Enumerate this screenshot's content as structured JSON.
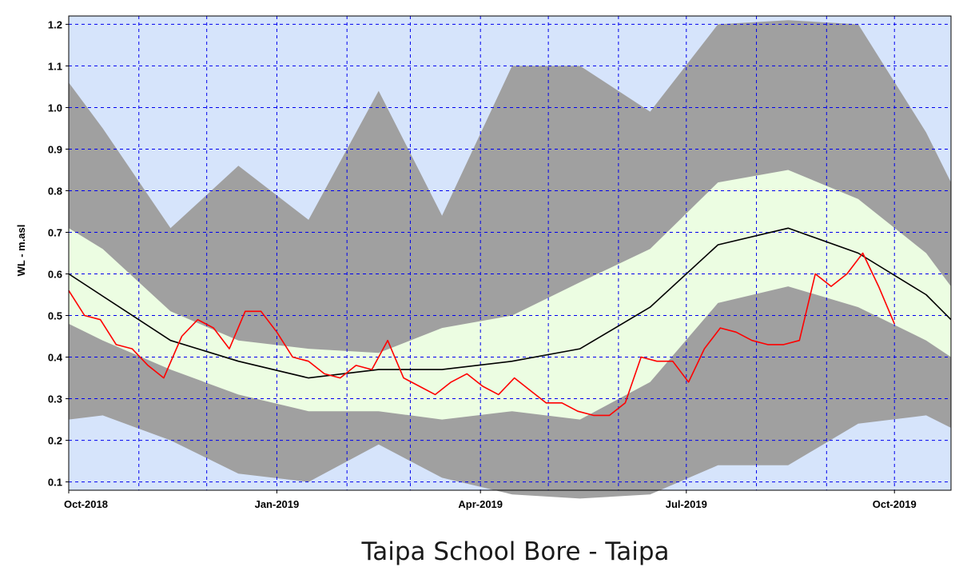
{
  "caption": "Taipa School Bore - Taipa",
  "chart_data": {
    "type": "area",
    "title": "",
    "ylabel": "WL - m.asl",
    "xlabel": "",
    "ylim": [
      0.08,
      1.22
    ],
    "xlim": [
      "2018-10-01",
      "2019-10-26"
    ],
    "grid": true,
    "y_ticks": [
      "0.1",
      "0.2",
      "0.3",
      "0.4",
      "0.5",
      "0.6",
      "0.7",
      "0.8",
      "0.9",
      "1.0",
      "1.1",
      "1.2"
    ],
    "x_ticks": [
      {
        "label": "Oct-2018",
        "date": "2018-10-01"
      },
      {
        "label": "Jan-2019",
        "date": "2019-01-01"
      },
      {
        "label": "Apr-2019",
        "date": "2019-04-01"
      },
      {
        "label": "Jul-2019",
        "date": "2019-07-01"
      },
      {
        "label": "Oct-2019",
        "date": "2019-10-01"
      }
    ],
    "bands": {
      "dates": [
        "2018-10-01",
        "2018-10-16",
        "2018-11-15",
        "2018-12-15",
        "2019-01-15",
        "2019-02-15",
        "2019-03-15",
        "2019-04-15",
        "2019-05-15",
        "2019-06-15",
        "2019-07-15",
        "2019-08-15",
        "2019-09-15",
        "2019-10-15",
        "2019-10-26"
      ],
      "max": [
        1.06,
        0.95,
        0.71,
        0.86,
        0.73,
        1.04,
        0.74,
        1.1,
        1.1,
        0.99,
        1.2,
        1.21,
        1.2,
        0.94,
        0.82
      ],
      "p_high": [
        0.71,
        0.66,
        0.51,
        0.44,
        0.42,
        0.41,
        0.47,
        0.5,
        0.58,
        0.66,
        0.82,
        0.85,
        0.78,
        0.65,
        0.57
      ],
      "p_low": [
        0.48,
        0.44,
        0.37,
        0.31,
        0.27,
        0.27,
        0.25,
        0.27,
        0.25,
        0.34,
        0.53,
        0.57,
        0.52,
        0.44,
        0.4
      ],
      "min": [
        0.25,
        0.26,
        0.2,
        0.12,
        0.1,
        0.19,
        0.11,
        0.07,
        0.06,
        0.07,
        0.14,
        0.14,
        0.24,
        0.26,
        0.23
      ]
    },
    "series": [
      {
        "color": "#000000",
        "x": [
          "2018-10-01",
          "2018-11-15",
          "2018-12-15",
          "2019-01-15",
          "2019-02-15",
          "2019-03-15",
          "2019-04-15",
          "2019-05-15",
          "2019-06-15",
          "2019-07-15",
          "2019-08-15",
          "2019-09-15",
          "2019-10-15",
          "2019-10-26"
        ],
        "y": [
          0.6,
          0.44,
          0.39,
          0.35,
          0.37,
          0.37,
          0.39,
          0.42,
          0.52,
          0.67,
          0.71,
          0.65,
          0.55,
          0.49
        ]
      },
      {
        "color": "#ff0000",
        "x": [
          "2018-10-01",
          "2018-10-08",
          "2018-10-15",
          "2018-10-22",
          "2018-10-29",
          "2018-11-05",
          "2018-11-12",
          "2018-11-20",
          "2018-11-27",
          "2018-12-04",
          "2018-12-11",
          "2018-12-18",
          "2018-12-25",
          "2019-01-01",
          "2019-01-08",
          "2019-01-15",
          "2019-01-22",
          "2019-01-29",
          "2019-02-05",
          "2019-02-12",
          "2019-02-19",
          "2019-02-26",
          "2019-03-05",
          "2019-03-12",
          "2019-03-19",
          "2019-03-26",
          "2019-04-02",
          "2019-04-09",
          "2019-04-16",
          "2019-04-23",
          "2019-04-30",
          "2019-05-07",
          "2019-05-14",
          "2019-05-21",
          "2019-05-28",
          "2019-06-04",
          "2019-06-11",
          "2019-06-18",
          "2019-06-25",
          "2019-07-02",
          "2019-07-09",
          "2019-07-16",
          "2019-07-23",
          "2019-07-30",
          "2019-08-06",
          "2019-08-13",
          "2019-08-20",
          "2019-08-27",
          "2019-09-03",
          "2019-09-10",
          "2019-09-17",
          "2019-09-24",
          "2019-10-01"
        ],
        "y": [
          0.56,
          0.5,
          0.49,
          0.43,
          0.42,
          0.38,
          0.35,
          0.45,
          0.49,
          0.47,
          0.42,
          0.51,
          0.51,
          0.46,
          0.4,
          0.39,
          0.36,
          0.35,
          0.38,
          0.37,
          0.44,
          0.35,
          0.33,
          0.31,
          0.34,
          0.36,
          0.33,
          0.31,
          0.35,
          0.32,
          0.29,
          0.29,
          0.27,
          0.26,
          0.26,
          0.29,
          0.4,
          0.39,
          0.39,
          0.34,
          0.42,
          0.47,
          0.46,
          0.44,
          0.43,
          0.43,
          0.44,
          0.6,
          0.57,
          0.6,
          0.65,
          0.57,
          0.48
        ]
      }
    ],
    "colors": {
      "background": "#d6e4fb",
      "grid": "#0000ee",
      "outer_band": "#a0a0a0",
      "inner_band": "#ecfde2"
    }
  }
}
